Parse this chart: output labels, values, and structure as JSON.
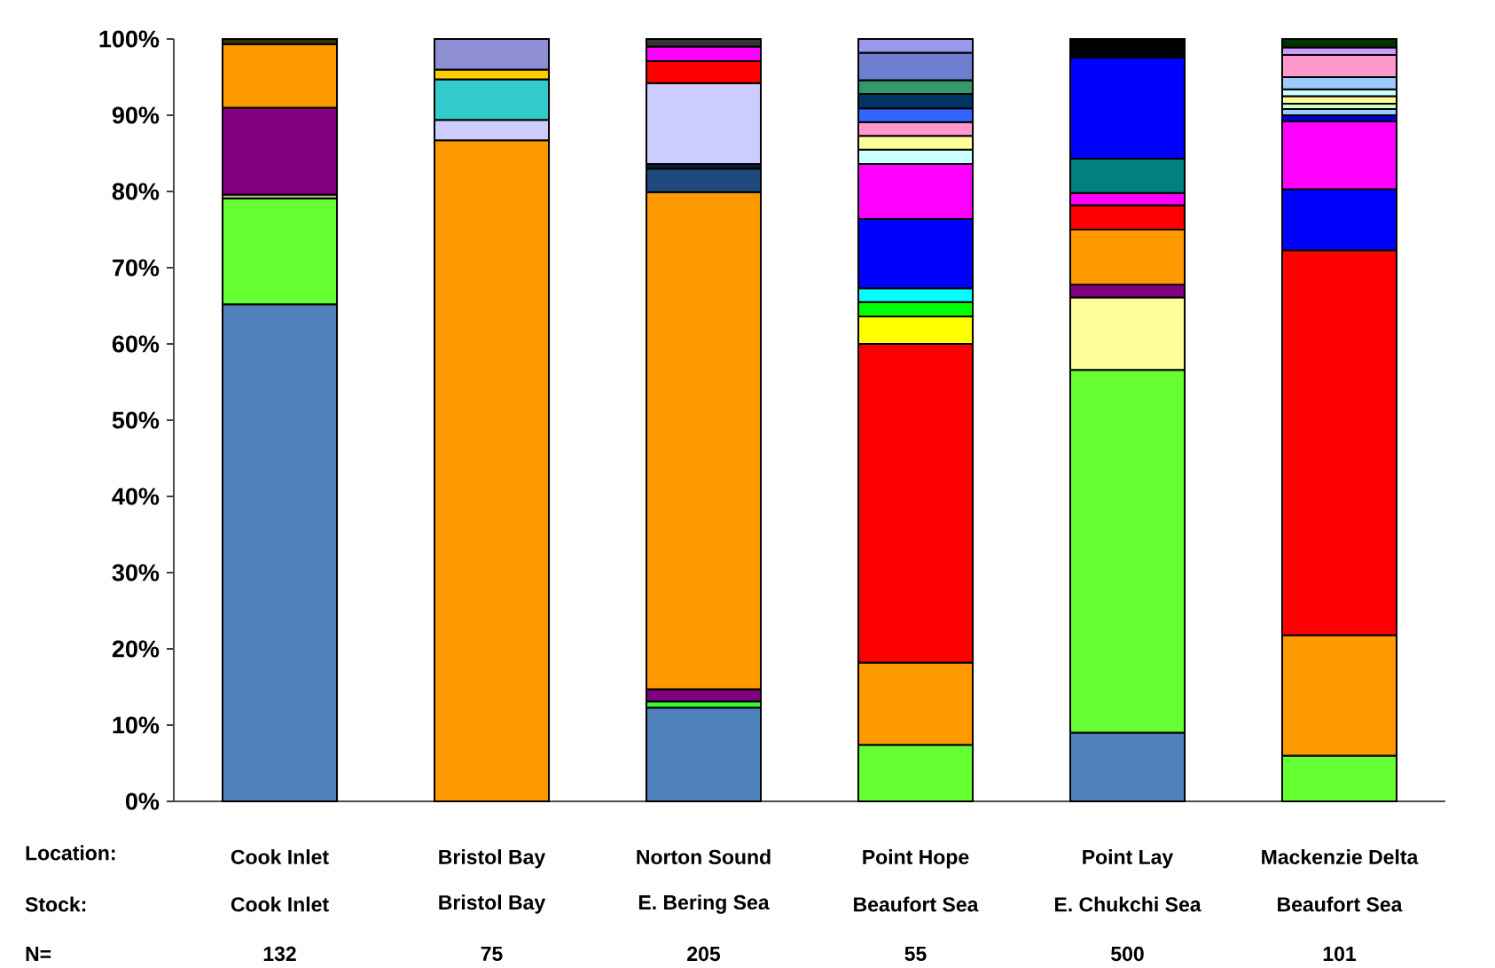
{
  "chart_data": {
    "type": "bar",
    "stacked": true,
    "categories": [
      "Cook Inlet",
      "Bristol Bay",
      "Norton Sound",
      "Point Hope",
      "Point Lay",
      "Mackenzie Delta"
    ],
    "series": [
      {
        "values": [
          65.2,
          86.7,
          12.3,
          7.4,
          9.0,
          6.0
        ],
        "colors": [
          "#4f81bd",
          "#ff9900",
          "#4f81bd",
          "#66ff33",
          "#4f81bd",
          "#66ff33"
        ]
      },
      {
        "values": [
          13.9,
          2.7,
          0.8,
          10.8,
          47.6,
          15.8
        ],
        "colors": [
          "#66ff33",
          "#ccccff",
          "#33ff33",
          "#ff9900",
          "#66ff33",
          "#ff9900"
        ]
      },
      {
        "values": [
          0.5,
          5.3,
          1.6,
          41.8,
          9.5,
          50.5
        ],
        "colors": [
          "#ccc089",
          "#33cccc",
          "#800080",
          "#ff0000",
          "#ffff99",
          "#ff0000"
        ]
      },
      {
        "values": [
          11.4,
          1.3,
          65.2,
          3.6,
          1.7,
          8.0
        ],
        "colors": [
          "#800080",
          "#ffcc00",
          "#ff9900",
          "#ffff00",
          "#800080",
          "#0000ff"
        ]
      },
      {
        "values": [
          8.3,
          4.0,
          3.1,
          1.9,
          7.2,
          8.9
        ],
        "colors": [
          "#ff9900",
          "#8f8fd6",
          "#1f497d",
          "#00ff00",
          "#ff9900",
          "#ff00ff"
        ]
      },
      {
        "values": [
          0.7,
          null,
          0.6,
          1.8,
          3.2,
          0.8
        ],
        "colors": [
          "#333300",
          null,
          "#0a1a33",
          "#00ffff",
          "#ff0000",
          "#0000cc"
        ]
      },
      {
        "values": [
          null,
          null,
          10.6,
          9.1,
          1.6,
          0.8
        ],
        "colors": [
          null,
          null,
          "#ccccff",
          "#0000ff",
          "#ff00ff",
          "#99ccff"
        ]
      },
      {
        "values": [
          null,
          null,
          2.9,
          7.2,
          4.5,
          0.7
        ],
        "colors": [
          null,
          null,
          "#ff0000",
          "#ff00ff",
          "#008080",
          "#ccffcc"
        ]
      },
      {
        "values": [
          null,
          null,
          1.9,
          1.9,
          13.3,
          1.0
        ],
        "colors": [
          null,
          null,
          "#ff00ff",
          "#ccffff",
          "#0000ff",
          "#ffff99"
        ]
      },
      {
        "values": [
          null,
          null,
          1.0,
          1.8,
          2.4,
          0.9
        ],
        "colors": [
          null,
          null,
          "#333333",
          "#ffff99",
          "#000000",
          "#ccffff"
        ]
      },
      {
        "values": [
          null,
          null,
          null,
          1.8,
          null,
          1.6
        ],
        "colors": [
          null,
          null,
          null,
          "#ff99cc",
          null,
          "#99ccff"
        ]
      },
      {
        "values": [
          null,
          null,
          null,
          1.8,
          null,
          2.9
        ],
        "colors": [
          null,
          null,
          null,
          "#3366ff",
          null,
          "#ff99cc"
        ]
      },
      {
        "values": [
          null,
          null,
          null,
          1.9,
          null,
          1.0
        ],
        "colors": [
          null,
          null,
          null,
          "#003366",
          null,
          "#cc99ff"
        ]
      },
      {
        "values": [
          null,
          null,
          null,
          1.8,
          null,
          1.1
        ],
        "colors": [
          null,
          null,
          null,
          "#339966",
          null,
          "#003300"
        ]
      },
      {
        "values": [
          null,
          null,
          null,
          3.6,
          null,
          null
        ],
        "colors": [
          null,
          null,
          null,
          "#6f7fd0",
          null,
          null
        ]
      },
      {
        "values": [
          null,
          null,
          null,
          1.8,
          null,
          null
        ],
        "colors": [
          null,
          null,
          null,
          "#9999ee",
          null,
          null
        ]
      }
    ],
    "ylim": [
      0,
      100
    ],
    "yticks": [
      {
        "value": 0,
        "label": "0%"
      },
      {
        "value": 10,
        "label": "10%"
      },
      {
        "value": 20,
        "label": "20%"
      },
      {
        "value": 30,
        "label": "30%"
      },
      {
        "value": 40,
        "label": "40%"
      },
      {
        "value": 50,
        "label": "50%"
      },
      {
        "value": 60,
        "label": "60%"
      },
      {
        "value": 70,
        "label": "70%"
      },
      {
        "value": 80,
        "label": "80%"
      },
      {
        "value": 90,
        "label": "90%"
      },
      {
        "value": 100,
        "label": "100%"
      }
    ],
    "annotations": [
      "Location:",
      "Stock:",
      "N=",
      "Cook Inlet",
      "Bristol Bay",
      "E. Bering Sea",
      "Beaufort Sea",
      "E. Chukchi Sea",
      "Beaufort Sea",
      "132",
      "75",
      "205",
      "55",
      "500",
      "101"
    ]
  }
}
